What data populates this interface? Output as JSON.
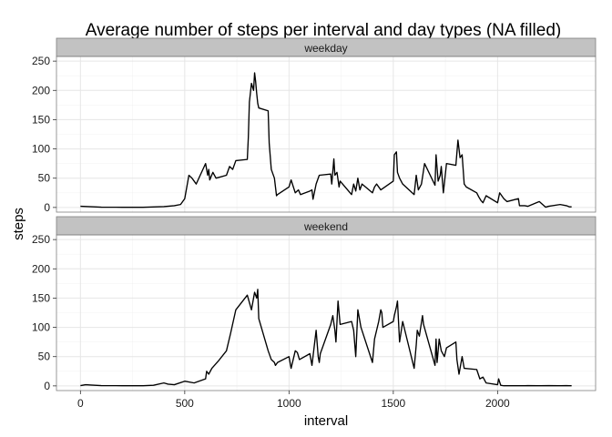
{
  "chart_data": {
    "type": "line",
    "title": "Average number of steps per interval and day types (NA filled)",
    "xlabel": "interval",
    "ylabel": "steps",
    "xlim": [
      -115,
      2470
    ],
    "ylim": [
      -8,
      258
    ],
    "x_ticks": [
      "0",
      "500",
      "1000",
      "1500",
      "2000"
    ],
    "y_ticks": [
      "0",
      "50",
      "100",
      "150",
      "200",
      "250"
    ],
    "grid": true,
    "facet_layout": "stacked vertically, shared x axis",
    "colors": {
      "line": "#000000",
      "strip_background": "#c2c2c2",
      "grid": "#e6e6e6",
      "panel_border": "#7f7f7f"
    },
    "panels": [
      {
        "strip": "weekday",
        "x": [
          0,
          100,
          200,
          300,
          400,
          450,
          480,
          500,
          510,
          520,
          535,
          545,
          555,
          600,
          610,
          615,
          620,
          635,
          650,
          700,
          715,
          730,
          745,
          800,
          805,
          810,
          820,
          830,
          835,
          840,
          845,
          850,
          855,
          900,
          905,
          915,
          930,
          940,
          945,
          1000,
          1010,
          1030,
          1045,
          1055,
          1100,
          1110,
          1115,
          1130,
          1145,
          1200,
          1205,
          1215,
          1220,
          1230,
          1240,
          1245,
          1300,
          1310,
          1320,
          1330,
          1340,
          1350,
          1400,
          1410,
          1420,
          1440,
          1500,
          1505,
          1515,
          1520,
          1530,
          1545,
          1600,
          1610,
          1620,
          1635,
          1650,
          1700,
          1705,
          1715,
          1725,
          1730,
          1740,
          1755,
          1800,
          1810,
          1820,
          1830,
          1840,
          1850,
          1900,
          1910,
          1920,
          1930,
          1945,
          2000,
          2010,
          2030,
          2045,
          2100,
          2105,
          2130,
          2145,
          2200,
          2230,
          2245,
          2300,
          2330,
          2345,
          2355
        ],
        "y": [
          2,
          0.5,
          0.3,
          0.2,
          1.5,
          3,
          5,
          15,
          35,
          55,
          50,
          45,
          40,
          75,
          55,
          65,
          47,
          60,
          50,
          55,
          70,
          65,
          80,
          82,
          120,
          180,
          212,
          200,
          230,
          215,
          195,
          178,
          170,
          165,
          110,
          65,
          50,
          20,
          22,
          35,
          47,
          25,
          30,
          22,
          28,
          30,
          14,
          40,
          55,
          57,
          40,
          83,
          55,
          60,
          35,
          45,
          22,
          40,
          28,
          50,
          30,
          40,
          25,
          35,
          40,
          30,
          45,
          90,
          95,
          60,
          50,
          40,
          22,
          55,
          30,
          40,
          75,
          38,
          90,
          45,
          55,
          70,
          25,
          75,
          72,
          115,
          85,
          90,
          40,
          35,
          25,
          18,
          12,
          8,
          20,
          8,
          25,
          15,
          10,
          15,
          3,
          3,
          2,
          10,
          0.5,
          2,
          5,
          3,
          1,
          1
        ]
      },
      {
        "strip": "weekend",
        "x": [
          0,
          25,
          50,
          100,
          200,
          300,
          350,
          400,
          420,
          450,
          500,
          545,
          600,
          605,
          615,
          630,
          660,
          700,
          720,
          745,
          800,
          820,
          835,
          845,
          850,
          855,
          900,
          910,
          915,
          930,
          935,
          945,
          1000,
          1010,
          1030,
          1040,
          1050,
          1100,
          1110,
          1130,
          1140,
          1145,
          1150,
          1200,
          1210,
          1220,
          1225,
          1235,
          1245,
          1300,
          1310,
          1320,
          1330,
          1345,
          1400,
          1410,
          1430,
          1440,
          1445,
          1450,
          1500,
          1505,
          1515,
          1520,
          1530,
          1545,
          1600,
          1610,
          1615,
          1625,
          1640,
          1645,
          1700,
          1705,
          1710,
          1720,
          1730,
          1745,
          1755,
          1800,
          1805,
          1815,
          1830,
          1840,
          1900,
          1915,
          1930,
          1945,
          2000,
          2005,
          2015,
          2030,
          2100,
          2130,
          2145,
          2200,
          2245,
          2300,
          2330,
          2345,
          2355
        ],
        "y": [
          0.5,
          2,
          1.5,
          0.5,
          0.3,
          0.2,
          1,
          5,
          3,
          2,
          8,
          5,
          12,
          25,
          20,
          30,
          42,
          60,
          90,
          130,
          155,
          130,
          160,
          150,
          165,
          115,
          60,
          50,
          45,
          40,
          35,
          40,
          50,
          30,
          60,
          57,
          45,
          55,
          35,
          95,
          50,
          40,
          55,
          105,
          120,
          95,
          75,
          145,
          105,
          110,
          95,
          50,
          130,
          100,
          40,
          80,
          110,
          130,
          125,
          100,
          110,
          120,
          135,
          145,
          75,
          110,
          30,
          70,
          95,
          85,
          120,
          105,
          35,
          80,
          40,
          80,
          60,
          50,
          65,
          75,
          45,
          20,
          50,
          30,
          28,
          12,
          15,
          5,
          2,
          12,
          1,
          0.2,
          0.3,
          0.2,
          0.5,
          0.3,
          0.5,
          0.2,
          0.4,
          0.3,
          0.2
        ]
      }
    ]
  }
}
